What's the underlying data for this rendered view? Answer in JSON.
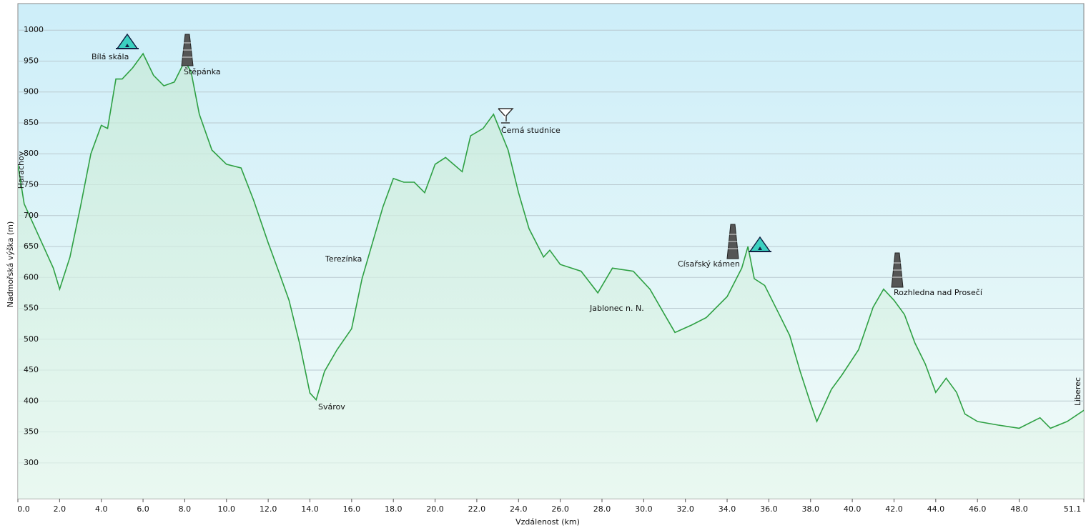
{
  "chart_data": {
    "type": "line",
    "xlabel": "Vzdálenost  (km)",
    "ylabel": "Nadmořská výška (m)",
    "x": [
      0,
      0.3,
      1,
      1.7,
      2,
      2.5,
      3,
      3.5,
      4,
      4.3,
      4.7,
      5,
      5.5,
      6,
      6.5,
      7,
      7.5,
      8,
      8.3,
      8.7,
      9.3,
      10,
      10.7,
      11.3,
      12,
      12.5,
      13,
      13.5,
      14,
      14.3,
      14.7,
      15.3,
      16,
      16.5,
      17,
      17.5,
      18,
      18.5,
      19,
      19.5,
      20,
      20.5,
      21.3,
      21.7,
      22.3,
      22.8,
      23.5,
      24,
      24.5,
      25.2,
      25.5,
      26,
      27,
      27.8,
      28.5,
      29.5,
      30.3,
      31,
      31.5,
      32.3,
      33,
      34,
      34.7,
      35,
      35.3,
      35.8,
      36.5,
      37,
      37.5,
      38,
      38.3,
      39,
      39.5,
      40.3,
      41,
      41.5,
      42,
      42.5,
      43,
      43.5,
      44,
      44.5,
      45,
      45.4,
      46,
      47,
      48,
      49,
      49.5,
      50.3,
      51.1
    ],
    "series": [
      {
        "name": "Nadmořská výška",
        "color": "#2ea043",
        "values": [
          783,
          719,
          667,
          615,
          581,
          633,
          714,
          800,
          846,
          841,
          921,
          921,
          939,
          962,
          927,
          910,
          916,
          950,
          933,
          864,
          806,
          783,
          777,
          725,
          656,
          610,
          563,
          494,
          413,
          402,
          448,
          483,
          517,
          598,
          656,
          714,
          760,
          754,
          754,
          737,
          783,
          794,
          771,
          829,
          841,
          864,
          806,
          737,
          679,
          633,
          644,
          621,
          610,
          575,
          615,
          610,
          581,
          540,
          511,
          523,
          535,
          569,
          615,
          650,
          598,
          587,
          540,
          506,
          448,
          396,
          367,
          419,
          442,
          483,
          552,
          581,
          563,
          540,
          494,
          460,
          414,
          437,
          414,
          379,
          367,
          361,
          356,
          373,
          356,
          367,
          385
        ]
      }
    ],
    "xlim": [
      0,
      51.1
    ],
    "ylim": [
      242,
      1043
    ],
    "xticks": [
      {
        "value": 0,
        "label": "0.0"
      },
      {
        "value": 2,
        "label": "2.0"
      },
      {
        "value": 4,
        "label": "4.0"
      },
      {
        "value": 6,
        "label": "6.0"
      },
      {
        "value": 8,
        "label": "8.0"
      },
      {
        "value": 10,
        "label": "10.0"
      },
      {
        "value": 12,
        "label": "12.0"
      },
      {
        "value": 14,
        "label": "14.0"
      },
      {
        "value": 16,
        "label": "16.0"
      },
      {
        "value": 18,
        "label": "18.0"
      },
      {
        "value": 20,
        "label": "20.0"
      },
      {
        "value": 22,
        "label": "22.0"
      },
      {
        "value": 24,
        "label": "24.0"
      },
      {
        "value": 26,
        "label": "26.0"
      },
      {
        "value": 28,
        "label": "28.0"
      },
      {
        "value": 30,
        "label": "30.0"
      },
      {
        "value": 32,
        "label": "32.0"
      },
      {
        "value": 34,
        "label": "34.0"
      },
      {
        "value": 36,
        "label": "36.0"
      },
      {
        "value": 38,
        "label": "38.0"
      },
      {
        "value": 40,
        "label": "40.0"
      },
      {
        "value": 42,
        "label": "42.0"
      },
      {
        "value": 44,
        "label": "44.0"
      },
      {
        "value": 46,
        "label": "46.0"
      },
      {
        "value": 48,
        "label": "48.0"
      },
      51.1
    ],
    "yticks": [
      300,
      350,
      400,
      450,
      500,
      550,
      600,
      650,
      700,
      750,
      800,
      850,
      900,
      950,
      1000
    ],
    "grid": true,
    "annotations": [
      "Bílá skála",
      "Štěpánka",
      "Černá studnice",
      "Terezínka",
      "Svárov",
      "Jablonec n. N.",
      "Císařský kámen",
      "Rozhledna nad Prosečí",
      "Harachov",
      "Liberec"
    ]
  }
}
